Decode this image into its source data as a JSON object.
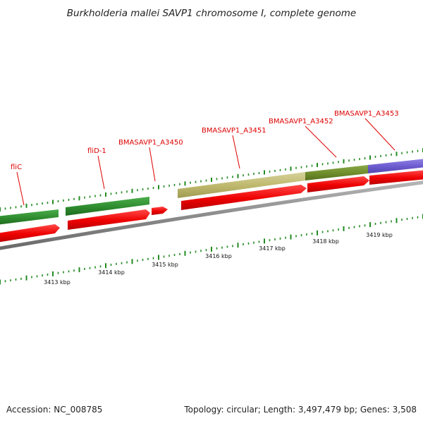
{
  "title": "Burkholderia mallei SAVP1 chromosome I, complete genome",
  "footer": {
    "accession": "Accession: NC_008785",
    "summary": "Topology: circular; Length: 3,497,479 bp; Genes: 3,508"
  },
  "scale": {
    "unit": "kbp",
    "labels": [
      "3413 kbp",
      "3414 kbp",
      "3415 kbp",
      "3416 kbp",
      "3417 kbp",
      "3418 kbp",
      "3419 kbp"
    ]
  },
  "features": {
    "colors": {
      "cds": "#ee0000",
      "gene_green": "#2e8b2e",
      "gene_olive": "#6e8c2a",
      "gene_khaki": "#bdb76b",
      "gene_purple": "#6a5acd",
      "backbone": "#8c8c8c",
      "tick": "#228b22",
      "label": "#dd0000"
    },
    "gene_labels": [
      "fliC",
      "fliD-1",
      "BMASAVP1_A3450",
      "BMASAVP1_A3451",
      "BMASAVP1_A3452",
      "BMASAVP1_A3453"
    ]
  }
}
